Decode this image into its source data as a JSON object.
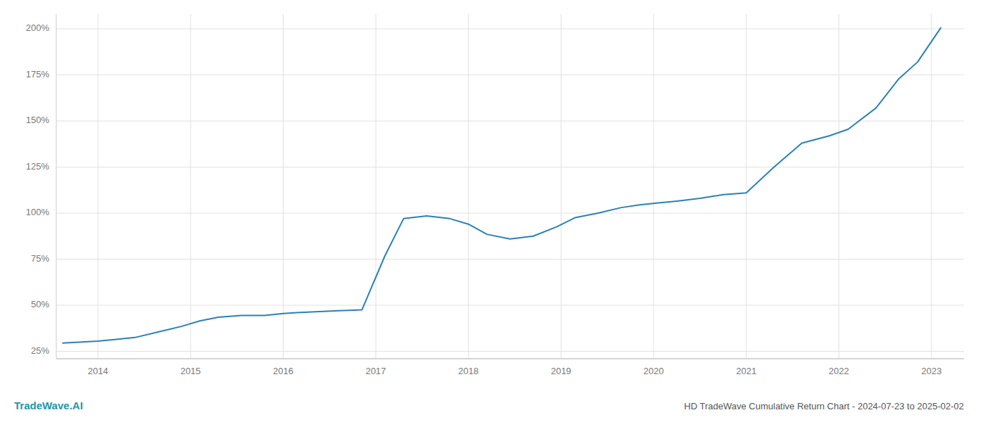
{
  "chart_data": {
    "type": "line",
    "title": "HD TradeWave Cumulative Return Chart - 2024-07-23 to 2025-02-02",
    "annotations": [
      "TradeWave.AI"
    ],
    "x": [
      2013.62,
      2014.0,
      2014.2,
      2014.4,
      2014.65,
      2014.9,
      2015.1,
      2015.3,
      2015.55,
      2015.8,
      2016.0,
      2016.15,
      2016.35,
      2016.6,
      2016.85,
      2017.1,
      2017.3,
      2017.55,
      2017.8,
      2018.0,
      2018.2,
      2018.45,
      2018.7,
      2018.95,
      2019.15,
      2019.4,
      2019.65,
      2019.85,
      2020.05,
      2020.25,
      2020.5,
      2020.75,
      2021.0,
      2021.3,
      2021.6,
      2021.9,
      2022.1,
      2022.4,
      2022.65,
      2022.85,
      2023.1
    ],
    "values": [
      0.295,
      0.305,
      0.315,
      0.325,
      0.355,
      0.385,
      0.415,
      0.435,
      0.445,
      0.445,
      0.455,
      0.46,
      0.465,
      0.47,
      0.475,
      0.77,
      0.97,
      0.985,
      0.97,
      0.94,
      0.885,
      0.86,
      0.875,
      0.925,
      0.975,
      1.0,
      1.03,
      1.045,
      1.055,
      1.065,
      1.08,
      1.1,
      1.11,
      1.25,
      1.38,
      1.42,
      1.455,
      1.57,
      1.73,
      1.82,
      2.005
    ],
    "color": "#2980b9",
    "xlim": [
      2013.55,
      2023.35
    ],
    "xticks": [
      2014,
      2015,
      2016,
      2017,
      2018,
      2019,
      2020,
      2021,
      2022,
      2023
    ],
    "ylim": [
      0.21,
      2.08
    ],
    "yticks": [
      {
        "value": 0.25,
        "label": "25%"
      },
      {
        "value": 0.5,
        "label": "50%"
      },
      {
        "value": 0.75,
        "label": "75%"
      },
      {
        "value": 1.0,
        "label": "100%"
      },
      {
        "value": 1.25,
        "label": "125%"
      },
      {
        "value": 1.5,
        "label": "150%"
      },
      {
        "value": 1.75,
        "label": "175%"
      },
      {
        "value": 2.0,
        "label": "200%"
      }
    ],
    "grid": true
  }
}
